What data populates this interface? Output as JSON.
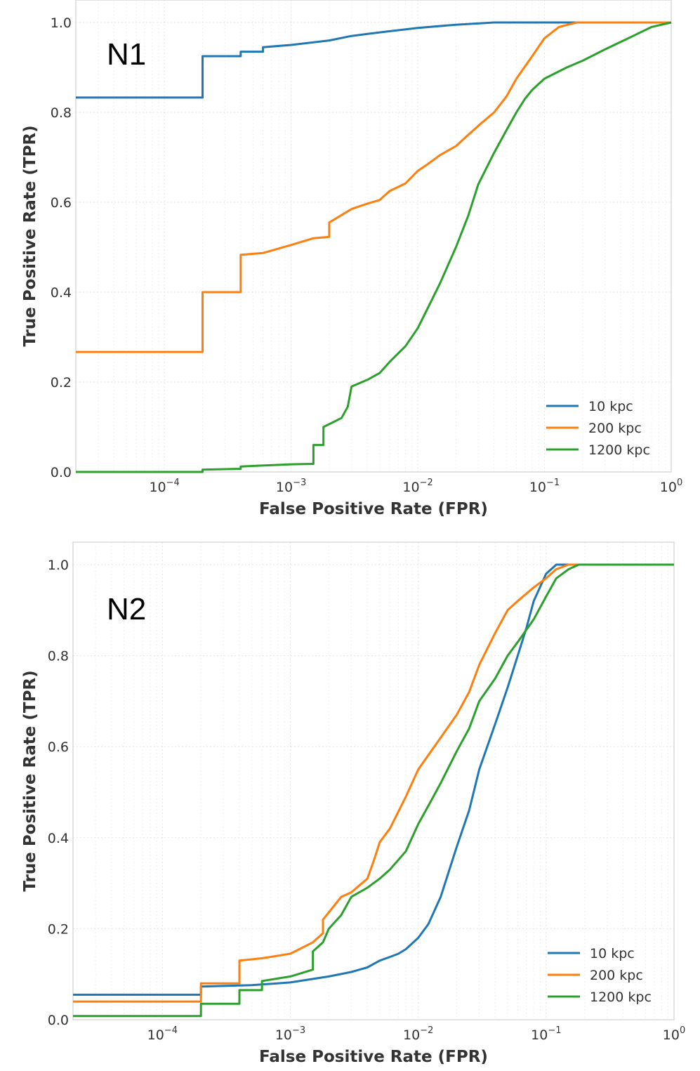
{
  "chart_data": [
    {
      "type": "line",
      "panel_label": "N1",
      "xlabel": "False Positive Rate (FPR)",
      "ylabel": "True Positive Rate (TPR)",
      "xscale": "log",
      "xlim": [
        2e-05,
        1.0
      ],
      "ylim": [
        0.0,
        1.0
      ],
      "grid": true,
      "legend_position": "lower-right",
      "x_ticks": [
        {
          "base": "10",
          "exp": "−4",
          "value": 0.0001
        },
        {
          "base": "10",
          "exp": "−3",
          "value": 0.001
        },
        {
          "base": "10",
          "exp": "−2",
          "value": 0.01
        },
        {
          "base": "10",
          "exp": "−1",
          "value": 0.1
        },
        {
          "base": "10",
          "exp": "0",
          "value": 1.0
        }
      ],
      "y_ticks": [
        {
          "label": "0.0",
          "value": 0.0
        },
        {
          "label": "0.2",
          "value": 0.2
        },
        {
          "label": "0.4",
          "value": 0.4
        },
        {
          "label": "0.6",
          "value": 0.6
        },
        {
          "label": "0.8",
          "value": 0.8
        },
        {
          "label": "1.0",
          "value": 1.0
        }
      ],
      "series": [
        {
          "name": "10 kpc",
          "color": "#1f77b4",
          "points": [
            [
              2e-05,
              0.833
            ],
            [
              0.0002,
              0.833
            ],
            [
              0.0002,
              0.925
            ],
            [
              0.0004,
              0.925
            ],
            [
              0.0004,
              0.935
            ],
            [
              0.0006,
              0.935
            ],
            [
              0.0006,
              0.945
            ],
            [
              0.001,
              0.95
            ],
            [
              0.002,
              0.96
            ],
            [
              0.003,
              0.97
            ],
            [
              0.005,
              0.978
            ],
            [
              0.01,
              0.988
            ],
            [
              0.02,
              0.995
            ],
            [
              0.04,
              1.0
            ],
            [
              0.1,
              1.0
            ],
            [
              1.0,
              1.0
            ]
          ]
        },
        {
          "name": "200 kpc",
          "color": "#ff7f0e",
          "points": [
            [
              2e-05,
              0.267
            ],
            [
              0.0002,
              0.267
            ],
            [
              0.0002,
              0.4
            ],
            [
              0.0004,
              0.4
            ],
            [
              0.0004,
              0.483
            ],
            [
              0.0006,
              0.487
            ],
            [
              0.001,
              0.505
            ],
            [
              0.0015,
              0.52
            ],
            [
              0.002,
              0.523
            ],
            [
              0.002,
              0.555
            ],
            [
              0.003,
              0.585
            ],
            [
              0.004,
              0.597
            ],
            [
              0.005,
              0.605
            ],
            [
              0.006,
              0.625
            ],
            [
              0.008,
              0.642
            ],
            [
              0.01,
              0.67
            ],
            [
              0.012,
              0.685
            ],
            [
              0.015,
              0.705
            ],
            [
              0.02,
              0.725
            ],
            [
              0.025,
              0.75
            ],
            [
              0.03,
              0.77
            ],
            [
              0.04,
              0.8
            ],
            [
              0.05,
              0.835
            ],
            [
              0.06,
              0.875
            ],
            [
              0.08,
              0.925
            ],
            [
              0.1,
              0.965
            ],
            [
              0.13,
              0.99
            ],
            [
              0.18,
              1.0
            ],
            [
              1.0,
              1.0
            ]
          ]
        },
        {
          "name": "1200 kpc",
          "color": "#2ca02c",
          "points": [
            [
              2e-05,
              0.0
            ],
            [
              0.0002,
              0.0
            ],
            [
              0.0002,
              0.005
            ],
            [
              0.0004,
              0.007
            ],
            [
              0.0004,
              0.012
            ],
            [
              0.001,
              0.017
            ],
            [
              0.0015,
              0.018
            ],
            [
              0.0015,
              0.06
            ],
            [
              0.0018,
              0.06
            ],
            [
              0.0018,
              0.1
            ],
            [
              0.0025,
              0.12
            ],
            [
              0.0028,
              0.145
            ],
            [
              0.003,
              0.19
            ],
            [
              0.004,
              0.205
            ],
            [
              0.005,
              0.22
            ],
            [
              0.006,
              0.245
            ],
            [
              0.008,
              0.28
            ],
            [
              0.01,
              0.32
            ],
            [
              0.012,
              0.365
            ],
            [
              0.015,
              0.42
            ],
            [
              0.02,
              0.5
            ],
            [
              0.025,
              0.57
            ],
            [
              0.03,
              0.64
            ],
            [
              0.04,
              0.71
            ],
            [
              0.05,
              0.76
            ],
            [
              0.06,
              0.8
            ],
            [
              0.07,
              0.83
            ],
            [
              0.08,
              0.85
            ],
            [
              0.1,
              0.875
            ],
            [
              0.15,
              0.9
            ],
            [
              0.2,
              0.915
            ],
            [
              0.3,
              0.94
            ],
            [
              0.5,
              0.97
            ],
            [
              0.7,
              0.99
            ],
            [
              1.0,
              1.0
            ]
          ]
        }
      ]
    },
    {
      "type": "line",
      "panel_label": "N2",
      "xlabel": "False Positive Rate (FPR)",
      "ylabel": "True Positive Rate (TPR)",
      "xscale": "log",
      "xlim": [
        2e-05,
        1.0
      ],
      "ylim": [
        0.0,
        1.0
      ],
      "grid": true,
      "legend_position": "lower-right",
      "x_ticks": [
        {
          "base": "10",
          "exp": "−4",
          "value": 0.0001
        },
        {
          "base": "10",
          "exp": "−3",
          "value": 0.001
        },
        {
          "base": "10",
          "exp": "−2",
          "value": 0.01
        },
        {
          "base": "10",
          "exp": "−1",
          "value": 0.1
        },
        {
          "base": "10",
          "exp": "0",
          "value": 1.0
        }
      ],
      "y_ticks": [
        {
          "label": "0.0",
          "value": 0.0
        },
        {
          "label": "0.2",
          "value": 0.2
        },
        {
          "label": "0.4",
          "value": 0.4
        },
        {
          "label": "0.6",
          "value": 0.6
        },
        {
          "label": "0.8",
          "value": 0.8
        },
        {
          "label": "1.0",
          "value": 1.0
        }
      ],
      "series": [
        {
          "name": "10 kpc",
          "color": "#1f77b4",
          "points": [
            [
              2e-05,
              0.055
            ],
            [
              0.0002,
              0.055
            ],
            [
              0.0002,
              0.073
            ],
            [
              0.0005,
              0.076
            ],
            [
              0.001,
              0.082
            ],
            [
              0.002,
              0.095
            ],
            [
              0.003,
              0.105
            ],
            [
              0.004,
              0.115
            ],
            [
              0.005,
              0.13
            ],
            [
              0.006,
              0.138
            ],
            [
              0.007,
              0.145
            ],
            [
              0.008,
              0.155
            ],
            [
              0.01,
              0.18
            ],
            [
              0.012,
              0.21
            ],
            [
              0.015,
              0.27
            ],
            [
              0.018,
              0.34
            ],
            [
              0.02,
              0.38
            ],
            [
              0.025,
              0.46
            ],
            [
              0.03,
              0.55
            ],
            [
              0.04,
              0.65
            ],
            [
              0.05,
              0.73
            ],
            [
              0.06,
              0.8
            ],
            [
              0.07,
              0.86
            ],
            [
              0.08,
              0.92
            ],
            [
              0.1,
              0.98
            ],
            [
              0.12,
              1.0
            ],
            [
              1.0,
              1.0
            ]
          ]
        },
        {
          "name": "200 kpc",
          "color": "#ff7f0e",
          "points": [
            [
              2e-05,
              0.04
            ],
            [
              0.0002,
              0.04
            ],
            [
              0.0002,
              0.08
            ],
            [
              0.0004,
              0.08
            ],
            [
              0.0004,
              0.13
            ],
            [
              0.0006,
              0.135
            ],
            [
              0.001,
              0.145
            ],
            [
              0.0015,
              0.17
            ],
            [
              0.0018,
              0.19
            ],
            [
              0.0018,
              0.22
            ],
            [
              0.0025,
              0.27
            ],
            [
              0.003,
              0.28
            ],
            [
              0.004,
              0.31
            ],
            [
              0.0045,
              0.35
            ],
            [
              0.005,
              0.39
            ],
            [
              0.006,
              0.42
            ],
            [
              0.008,
              0.49
            ],
            [
              0.01,
              0.55
            ],
            [
              0.015,
              0.62
            ],
            [
              0.02,
              0.67
            ],
            [
              0.025,
              0.72
            ],
            [
              0.03,
              0.78
            ],
            [
              0.04,
              0.85
            ],
            [
              0.05,
              0.9
            ],
            [
              0.06,
              0.92
            ],
            [
              0.08,
              0.95
            ],
            [
              0.1,
              0.97
            ],
            [
              0.12,
              0.99
            ],
            [
              0.15,
              1.0
            ],
            [
              1.0,
              1.0
            ]
          ]
        },
        {
          "name": "1200 kpc",
          "color": "#2ca02c",
          "points": [
            [
              2e-05,
              0.008
            ],
            [
              0.0002,
              0.008
            ],
            [
              0.0002,
              0.035
            ],
            [
              0.0004,
              0.035
            ],
            [
              0.0004,
              0.065
            ],
            [
              0.0006,
              0.065
            ],
            [
              0.0006,
              0.085
            ],
            [
              0.001,
              0.095
            ],
            [
              0.0015,
              0.11
            ],
            [
              0.0015,
              0.15
            ],
            [
              0.0018,
              0.17
            ],
            [
              0.002,
              0.2
            ],
            [
              0.0025,
              0.23
            ],
            [
              0.003,
              0.27
            ],
            [
              0.004,
              0.29
            ],
            [
              0.005,
              0.31
            ],
            [
              0.006,
              0.33
            ],
            [
              0.008,
              0.37
            ],
            [
              0.01,
              0.43
            ],
            [
              0.012,
              0.47
            ],
            [
              0.015,
              0.52
            ],
            [
              0.02,
              0.59
            ],
            [
              0.025,
              0.64
            ],
            [
              0.03,
              0.7
            ],
            [
              0.04,
              0.75
            ],
            [
              0.05,
              0.8
            ],
            [
              0.06,
              0.83
            ],
            [
              0.08,
              0.88
            ],
            [
              0.1,
              0.93
            ],
            [
              0.12,
              0.97
            ],
            [
              0.15,
              0.99
            ],
            [
              0.18,
              1.0
            ],
            [
              1.0,
              1.0
            ]
          ]
        }
      ]
    }
  ]
}
